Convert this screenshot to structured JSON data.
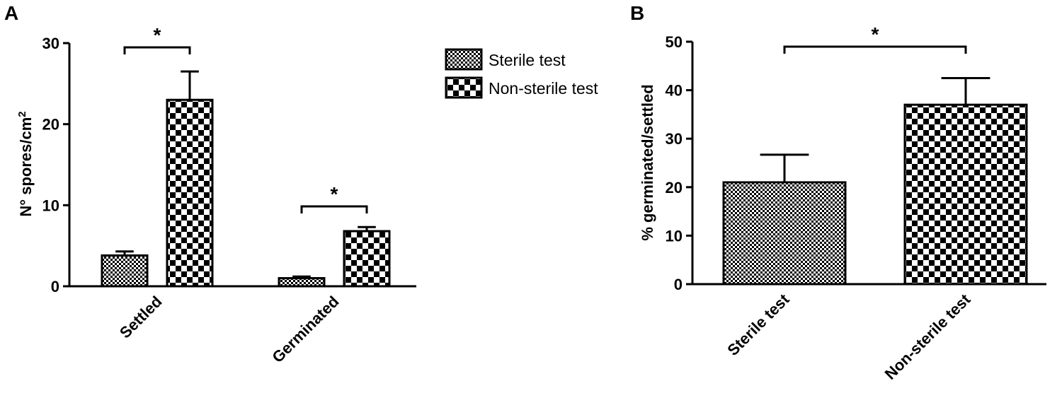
{
  "panel_a": {
    "label": "A",
    "y_axis_label_main": "N° spores/cm",
    "y_axis_label_sup": "2",
    "significance_marks": [
      "*",
      "*"
    ]
  },
  "panel_b": {
    "label": "B",
    "y_axis_label": "% germinated/settled",
    "significance_marks": [
      "*"
    ]
  },
  "legend": {
    "items": [
      {
        "label": "Sterile test",
        "pattern": "fine-checker"
      },
      {
        "label": "Non-sterile test",
        "pattern": "coarse-checker"
      }
    ]
  },
  "colors": {
    "ink": "#000000",
    "background": "#ffffff"
  },
  "chart_data": [
    {
      "type": "bar",
      "panel": "A",
      "categories": [
        "Settled",
        "Germinated"
      ],
      "series": [
        {
          "name": "Sterile test",
          "values": [
            3.8,
            1.0
          ],
          "errors": [
            0.5,
            0.2
          ]
        },
        {
          "name": "Non-sterile test",
          "values": [
            23.0,
            6.8
          ],
          "errors": [
            3.5,
            0.5
          ]
        }
      ],
      "ylabel": "N° spores/cm2",
      "ylim": [
        0,
        30
      ],
      "yticks": [
        0,
        10,
        20,
        30
      ],
      "significance": [
        {
          "category": "Settled",
          "mark": "*"
        },
        {
          "category": "Germinated",
          "mark": "*"
        }
      ],
      "grid": false,
      "legend": "right"
    },
    {
      "type": "bar",
      "panel": "B",
      "categories": [
        "Sterile test",
        "Non-sterile test"
      ],
      "values": [
        21.0,
        37.0
      ],
      "errors": [
        5.7,
        5.5
      ],
      "ylabel": "% germinated/settled",
      "ylim": [
        0,
        50
      ],
      "yticks": [
        0,
        10,
        20,
        30,
        40,
        50
      ],
      "significance": [
        {
          "between": [
            "Sterile test",
            "Non-sterile test"
          ],
          "mark": "*"
        }
      ],
      "grid": false
    }
  ]
}
